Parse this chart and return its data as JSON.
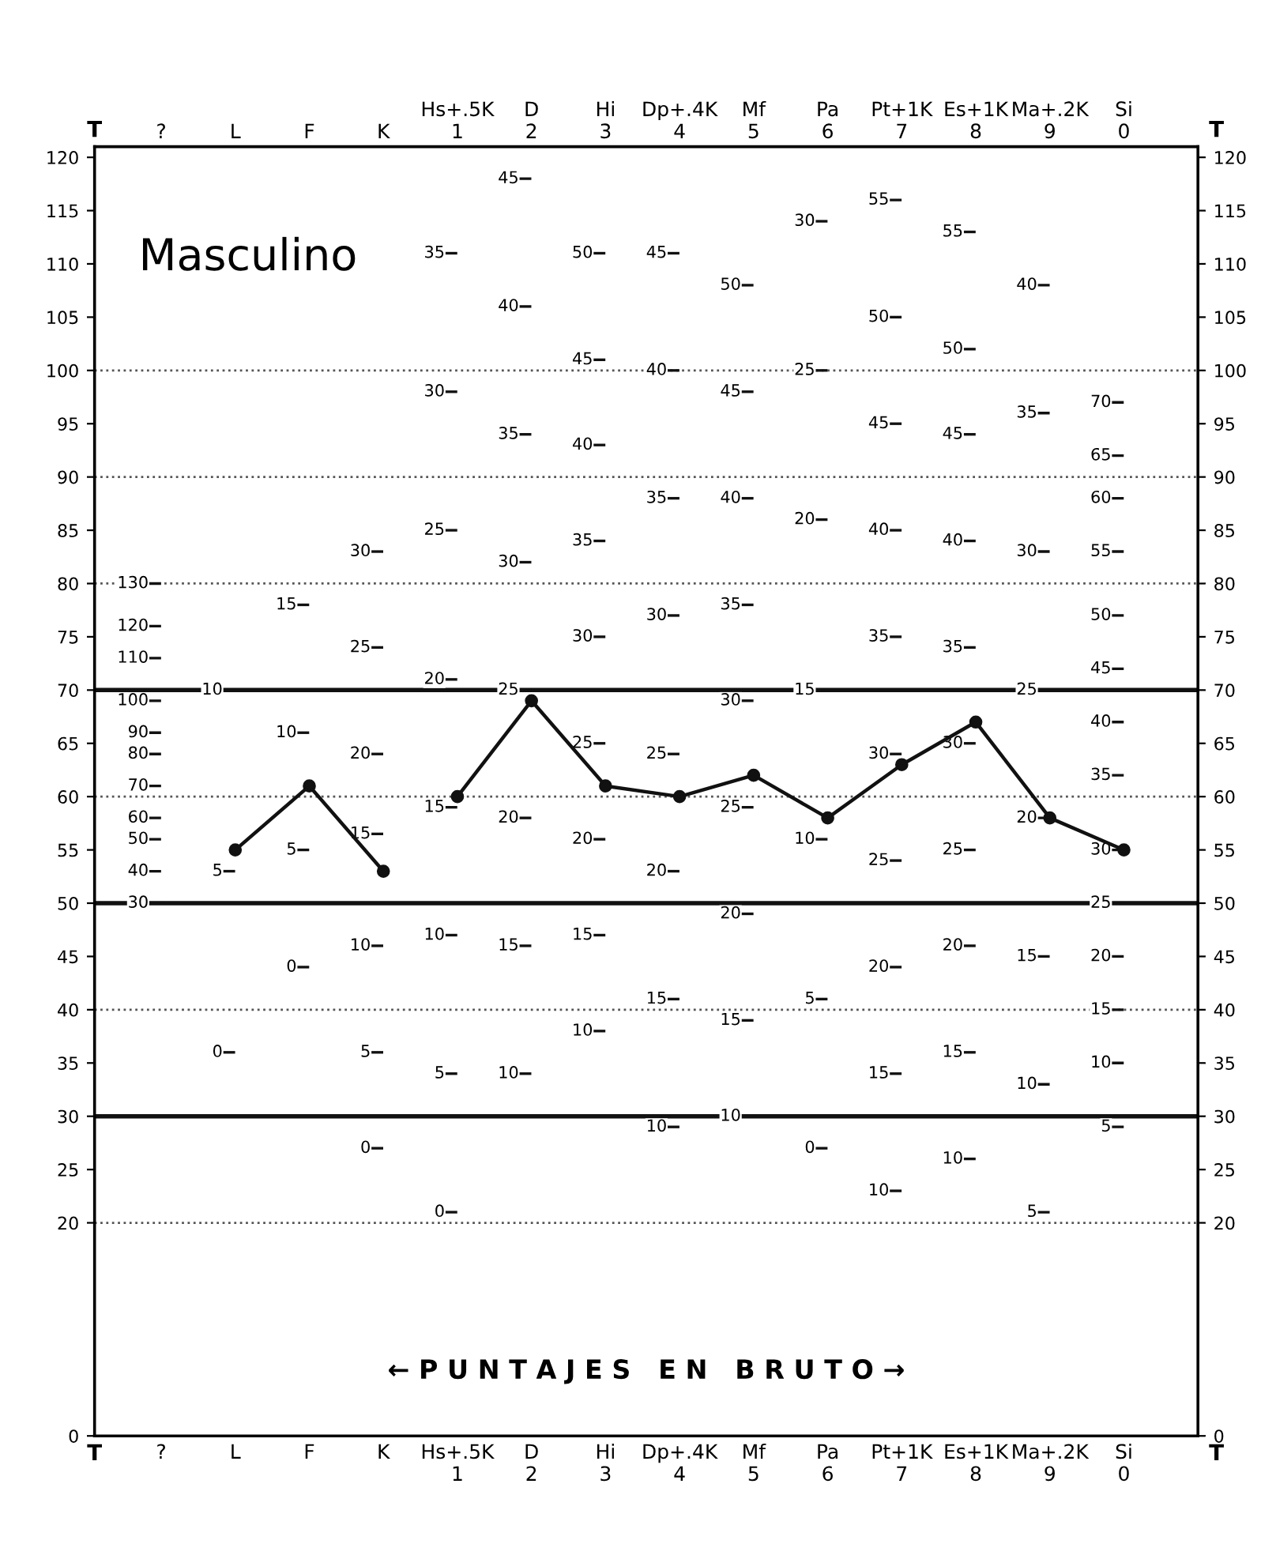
{
  "chart_data": {
    "type": "line",
    "title": "Masculino",
    "categories": [
      "?",
      "L",
      "F",
      "K",
      "Hs+.5K\n1",
      "D\n2",
      "Hi\n3",
      "Dp+.4K\n4",
      "Mf\n5",
      "Pa\n6",
      "Pt+1K\n7",
      "Es+1K\n8",
      "Ma+.2K\n9",
      "Si\n0"
    ],
    "series": [
      {
        "color": "#111111",
        "values": [
          null,
          55,
          61,
          53,
          null,
          null,
          null,
          null,
          null,
          null,
          null,
          null,
          null,
          null
        ]
      },
      {
        "color": "#111111",
        "values": [
          null,
          null,
          null,
          null,
          60,
          69,
          61,
          60,
          62,
          58,
          63,
          67,
          58,
          55
        ]
      }
    ],
    "ylabel": "T",
    "y2label": "T",
    "ylim": [
      0,
      121
    ],
    "yticks": [
      0,
      20,
      25,
      30,
      35,
      40,
      45,
      50,
      55,
      60,
      65,
      70,
      75,
      80,
      85,
      90,
      95,
      100,
      105,
      110,
      115,
      120
    ],
    "y2lim": [
      0,
      121
    ],
    "y2ticks": [
      0,
      20,
      25,
      30,
      35,
      40,
      45,
      50,
      55,
      60,
      65,
      70,
      75,
      80,
      85,
      90,
      95,
      100,
      105,
      110,
      115,
      120
    ],
    "marker": "circle",
    "line_style": "solid",
    "grid": false,
    "legend": false,
    "ref_lines": [
      {
        "axis": "y",
        "value": 30,
        "color": "#111111",
        "line_style": "solid"
      },
      {
        "axis": "y",
        "value": 50,
        "color": "#111111",
        "line_style": "solid"
      },
      {
        "axis": "y",
        "value": 70,
        "color": "#111111",
        "line_style": "solid"
      },
      {
        "axis": "y",
        "value": 20,
        "color": "#555555",
        "line_style": "dotted"
      },
      {
        "axis": "y",
        "value": 40,
        "color": "#555555",
        "line_style": "dotted"
      },
      {
        "axis": "y",
        "value": 60,
        "color": "#555555",
        "line_style": "dotted"
      },
      {
        "axis": "y",
        "value": 80,
        "color": "#555555",
        "line_style": "dotted"
      },
      {
        "axis": "y",
        "value": 90,
        "color": "#555555",
        "line_style": "dotted"
      },
      {
        "axis": "y",
        "value": 100,
        "color": "#555555",
        "line_style": "dotted"
      }
    ],
    "annotations": [
      "← P U N T A J E S   E N   B R U T O →",
      "130",
      "120",
      "110",
      "100",
      "90",
      "80",
      "70",
      "60",
      "50",
      "40",
      "30",
      "10",
      "5",
      "0",
      "15",
      "10",
      "5",
      "0",
      "30",
      "25",
      "20",
      "15",
      "10",
      "5",
      "0",
      "35",
      "30",
      "25",
      "20",
      "15",
      "10",
      "5",
      "0",
      "45",
      "40",
      "35",
      "30",
      "25",
      "20",
      "15",
      "10",
      "50",
      "45",
      "40",
      "35",
      "30",
      "25",
      "20",
      "15",
      "10",
      "45",
      "40",
      "35",
      "30",
      "25",
      "20",
      "15",
      "10",
      "50",
      "45",
      "40",
      "35",
      "30",
      "25",
      "20",
      "15",
      "10",
      "30",
      "25",
      "20",
      "15",
      "10",
      "5",
      "0",
      "55",
      "50",
      "45",
      "40",
      "35",
      "30",
      "25",
      "20",
      "15",
      "10",
      "55",
      "50",
      "45",
      "40",
      "35",
      "30",
      "25",
      "20",
      "15",
      "10",
      "40",
      "35",
      "30",
      "25",
      "20",
      "15",
      "10",
      "5",
      "70",
      "65",
      "60",
      "55",
      "50",
      "45",
      "40",
      "35",
      "30",
      "25",
      "20",
      "15",
      "10",
      "5"
    ]
  }
}
